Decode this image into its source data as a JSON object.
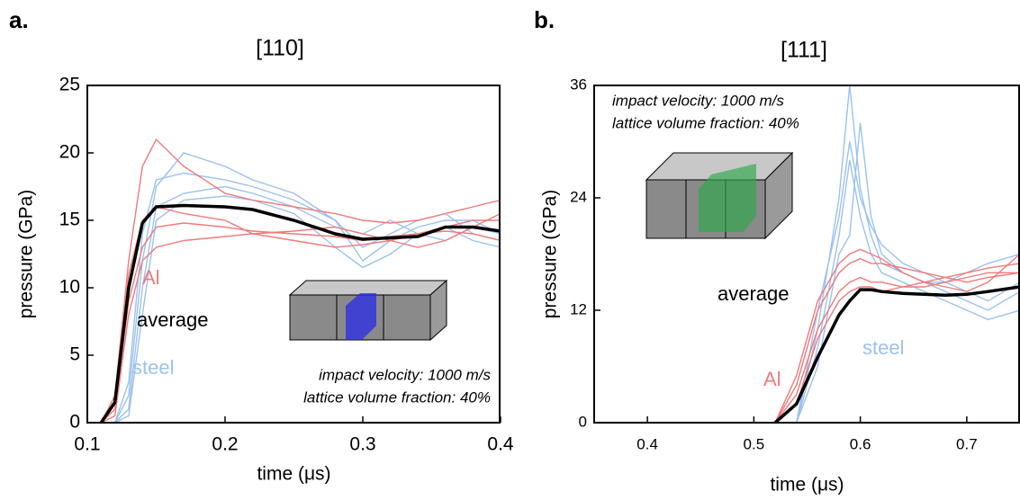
{
  "chart_data": [
    {
      "type": "line",
      "panel_label": "a.",
      "title": "[110]",
      "x_label": "time (μs)",
      "y_label": "pressure (GPa)",
      "annotations": [
        "impact velocity: 1000 m/s",
        "lattice volume fraction: 40%"
      ],
      "xlim": [
        0.1,
        0.4
      ],
      "xticks": [
        0.1,
        0.2,
        0.3,
        0.4
      ],
      "ylim": [
        0,
        25
      ],
      "yticks": [
        0,
        5,
        10,
        15,
        20,
        25
      ],
      "x": [
        0.11,
        0.12,
        0.13,
        0.14,
        0.15,
        0.17,
        0.2,
        0.22,
        0.25,
        0.28,
        0.3,
        0.32,
        0.34,
        0.36,
        0.38,
        0.4
      ],
      "series": [
        {
          "name": "steel",
          "color": "#9cc2ee",
          "runs": [
            [
              0,
              0,
              3,
              14,
              18,
              18.5,
              18,
              17.5,
              16.5,
              15,
              13,
              14,
              15,
              15.5,
              14,
              13.5
            ],
            [
              0,
              0,
              1,
              10,
              16,
              17,
              17.5,
              17,
              16,
              14.5,
              14,
              15,
              14,
              13.5,
              14.5,
              14
            ],
            [
              0,
              0,
              2,
              12,
              17.5,
              20,
              19,
              18,
              17,
              15,
              12,
              13.5,
              14.5,
              15,
              15,
              14
            ],
            [
              0,
              0,
              0.5,
              8,
              15,
              16.5,
              16.8,
              16.5,
              15.5,
              13,
              11.5,
              12.5,
              14,
              14.5,
              13.5,
              13
            ]
          ]
        },
        {
          "name": "Al",
          "color": "#f07a7a",
          "runs": [
            [
              0,
              2,
              12,
              19,
              21,
              19,
              17,
              16.5,
              16,
              15.5,
              15,
              14.8,
              15,
              15.5,
              16,
              16.5
            ],
            [
              0,
              1,
              9,
              13,
              14.5,
              14.8,
              14.5,
              14.2,
              14,
              13.8,
              13.5,
              13.8,
              14,
              14.5,
              15,
              15
            ],
            [
              0,
              1.5,
              11,
              15,
              16,
              15.5,
              15,
              14,
              13.5,
              13,
              13.2,
              13.5,
              14,
              14.2,
              14,
              13.5
            ],
            [
              0,
              0.5,
              8,
              12,
              13,
              13.5,
              13.8,
              14,
              14.2,
              14.5,
              14,
              13.5,
              13,
              13.5,
              14.5,
              15.5
            ]
          ]
        },
        {
          "name": "average",
          "color": "#000000",
          "runs": [
            [
              0,
              1.5,
              10,
              14.8,
              16,
              16.1,
              16,
              15.8,
              15,
              14,
              13.6,
              13.7,
              13.8,
              14.5,
              14.5,
              14.2
            ]
          ]
        }
      ]
    },
    {
      "type": "line",
      "panel_label": "b.",
      "title": "[111]",
      "x_label": "time (μs)",
      "y_label": "pressure (GPa)",
      "annotations": [
        "impact velocity: 1000 m/s",
        "lattice volume fraction: 40%"
      ],
      "xlim": [
        0.35,
        0.75
      ],
      "xticks": [
        0.4,
        0.5,
        0.6,
        0.7
      ],
      "ylim": [
        0,
        36
      ],
      "yticks": [
        0,
        12,
        24,
        36
      ],
      "x": [
        0.5,
        0.52,
        0.54,
        0.56,
        0.58,
        0.59,
        0.6,
        0.61,
        0.62,
        0.64,
        0.66,
        0.68,
        0.7,
        0.72,
        0.75
      ],
      "series": [
        {
          "name": "steel",
          "color": "#9cc2ee",
          "runs": [
            [
              null,
              null,
              0,
              8,
              20,
              28,
              22,
              18,
              16,
              15,
              14,
              13,
              12,
              11,
              12
            ],
            [
              null,
              null,
              0,
              10,
              24,
              36,
              25,
              20,
              17,
              16,
              15,
              15,
              14,
              13,
              15
            ],
            [
              null,
              null,
              0,
              6,
              18,
              20,
              32,
              22,
              18,
              16,
              15,
              14,
              13,
              12,
              14
            ],
            [
              null,
              null,
              0,
              12,
              22,
              30,
              24,
              21,
              19,
              17,
              16,
              15,
              16,
              17,
              18
            ]
          ]
        },
        {
          "name": "Al",
          "color": "#f07a7a",
          "runs": [
            [
              null,
              0,
              4,
              12,
              16,
              17,
              17.5,
              17,
              17,
              16.5,
              16,
              15.5,
              16,
              16.5,
              17
            ],
            [
              null,
              0,
              3,
              10,
              14,
              15,
              15.5,
              15,
              15,
              14.5,
              14.5,
              15,
              15.5,
              16,
              16
            ],
            [
              null,
              0,
              5,
              13,
              17,
              18,
              18.5,
              18,
              17.5,
              16,
              15,
              14.5,
              14,
              15,
              18
            ],
            [
              null,
              0,
              2,
              9,
              13,
              14,
              14.5,
              14.5,
              14,
              14.5,
              15,
              15.5,
              15,
              15.5,
              16
            ]
          ]
        },
        {
          "name": "average",
          "color": "#000000",
          "runs": [
            [
              null,
              0,
              2,
              7,
              11.5,
              13,
              14.2,
              14.2,
              14,
              13.8,
              13.7,
              13.6,
              13.7,
              14,
              14.5
            ]
          ]
        }
      ]
    }
  ]
}
